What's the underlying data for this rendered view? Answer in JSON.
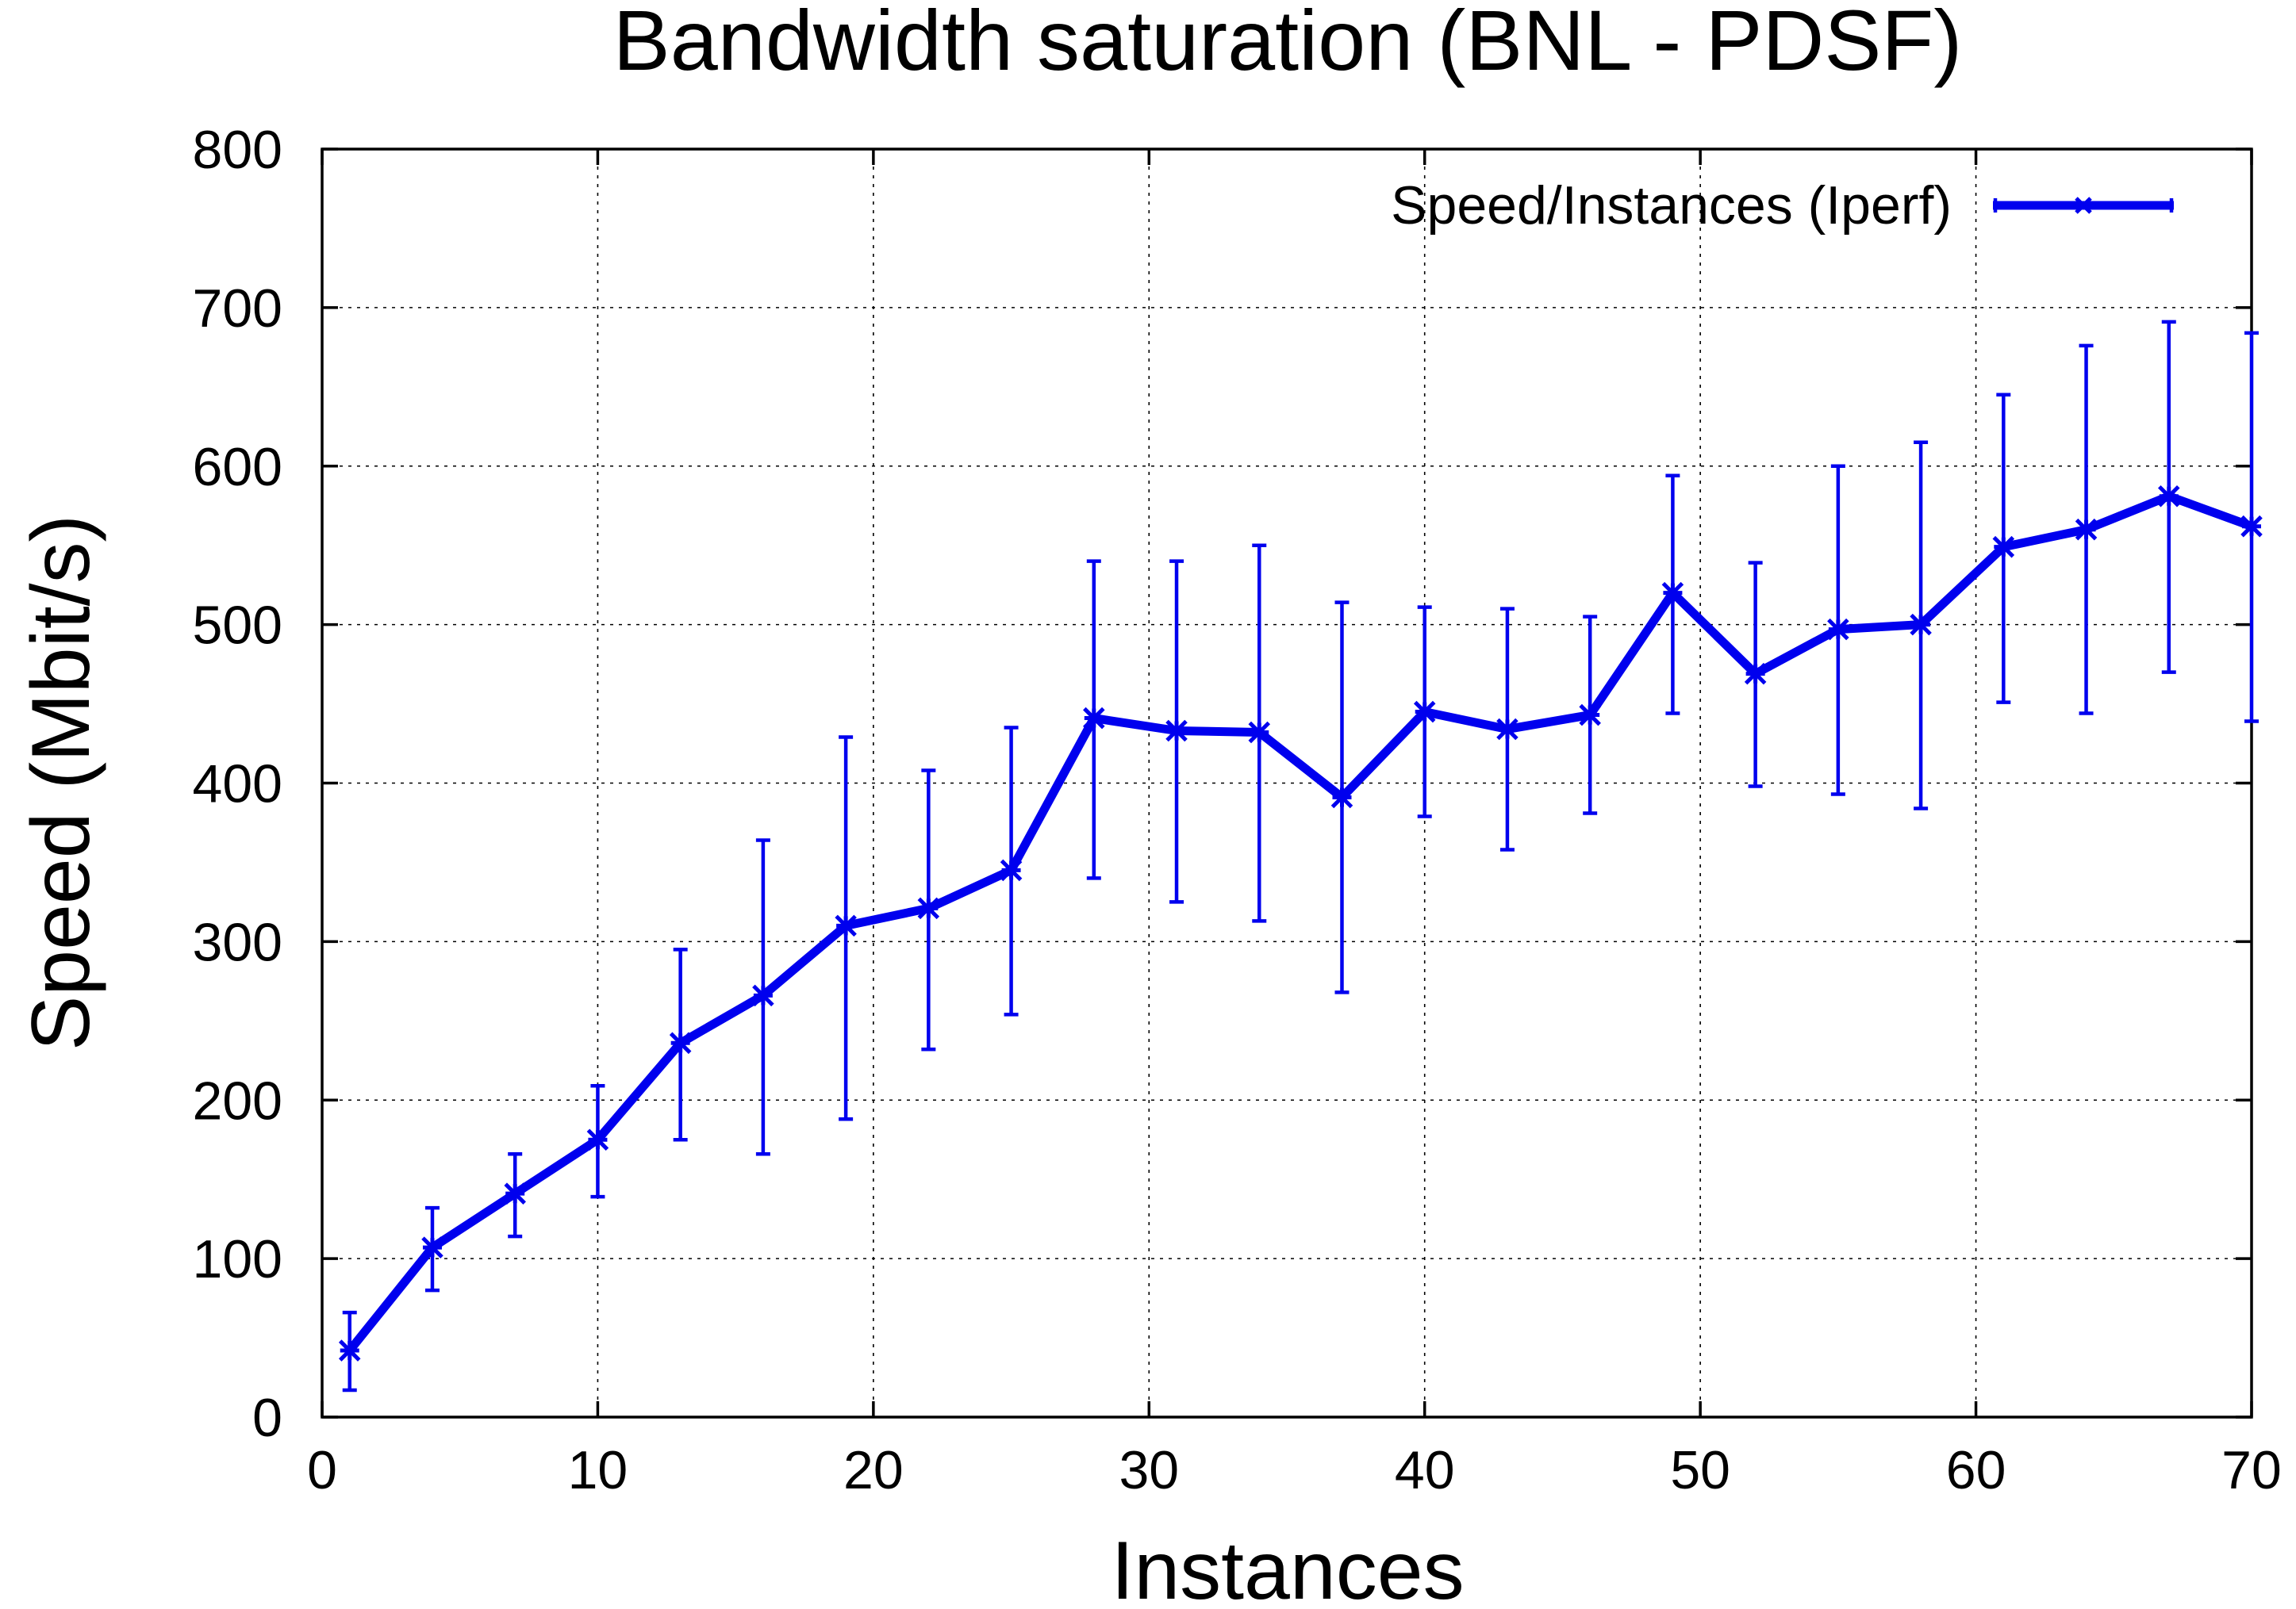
{
  "chart_data": {
    "type": "line",
    "title": "Bandwidth saturation (BNL - PDSF)",
    "xlabel": "Instances",
    "ylabel": "Speed (Mbit/s)",
    "xlim": [
      0,
      70
    ],
    "ylim": [
      0,
      800
    ],
    "xticks": [
      "0",
      "10",
      "20",
      "30",
      "40",
      "50",
      "60",
      "70"
    ],
    "yticks": [
      "0",
      "100",
      "200",
      "300",
      "400",
      "500",
      "600",
      "700",
      "800"
    ],
    "grid": true,
    "legend_position": "top-right",
    "color": "#0000ee",
    "series": [
      {
        "name": "Speed/Instances (Iperf)",
        "points": [
          {
            "x": 1,
            "y": 42,
            "low": 17,
            "high": 66
          },
          {
            "x": 4,
            "y": 107,
            "low": 80,
            "high": 132
          },
          {
            "x": 7,
            "y": 141,
            "low": 114,
            "high": 166
          },
          {
            "x": 10,
            "y": 175,
            "low": 139,
            "high": 209
          },
          {
            "x": 13,
            "y": 236,
            "low": 175,
            "high": 295
          },
          {
            "x": 16,
            "y": 266,
            "low": 166,
            "high": 364
          },
          {
            "x": 19,
            "y": 310,
            "low": 188,
            "high": 429
          },
          {
            "x": 22,
            "y": 321,
            "low": 232,
            "high": 408
          },
          {
            "x": 25,
            "y": 345,
            "low": 254,
            "high": 435
          },
          {
            "x": 28,
            "y": 441,
            "low": 340,
            "high": 540
          },
          {
            "x": 31,
            "y": 433,
            "low": 325,
            "high": 540
          },
          {
            "x": 34,
            "y": 432,
            "low": 313,
            "high": 550
          },
          {
            "x": 37,
            "y": 391,
            "low": 268,
            "high": 514
          },
          {
            "x": 40,
            "y": 445,
            "low": 379,
            "high": 511
          },
          {
            "x": 43,
            "y": 434,
            "low": 358,
            "high": 510
          },
          {
            "x": 46,
            "y": 443,
            "low": 381,
            "high": 505
          },
          {
            "x": 49,
            "y": 520,
            "low": 444,
            "high": 594
          },
          {
            "x": 52,
            "y": 469,
            "low": 398,
            "high": 539
          },
          {
            "x": 55,
            "y": 497,
            "low": 393,
            "high": 600
          },
          {
            "x": 58,
            "y": 500,
            "low": 384,
            "high": 615
          },
          {
            "x": 61,
            "y": 549,
            "low": 451,
            "high": 645
          },
          {
            "x": 64,
            "y": 560,
            "low": 444,
            "high": 676
          },
          {
            "x": 67,
            "y": 581,
            "low": 470,
            "high": 691
          },
          {
            "x": 70,
            "y": 562,
            "low": 439,
            "high": 684
          }
        ]
      }
    ]
  }
}
